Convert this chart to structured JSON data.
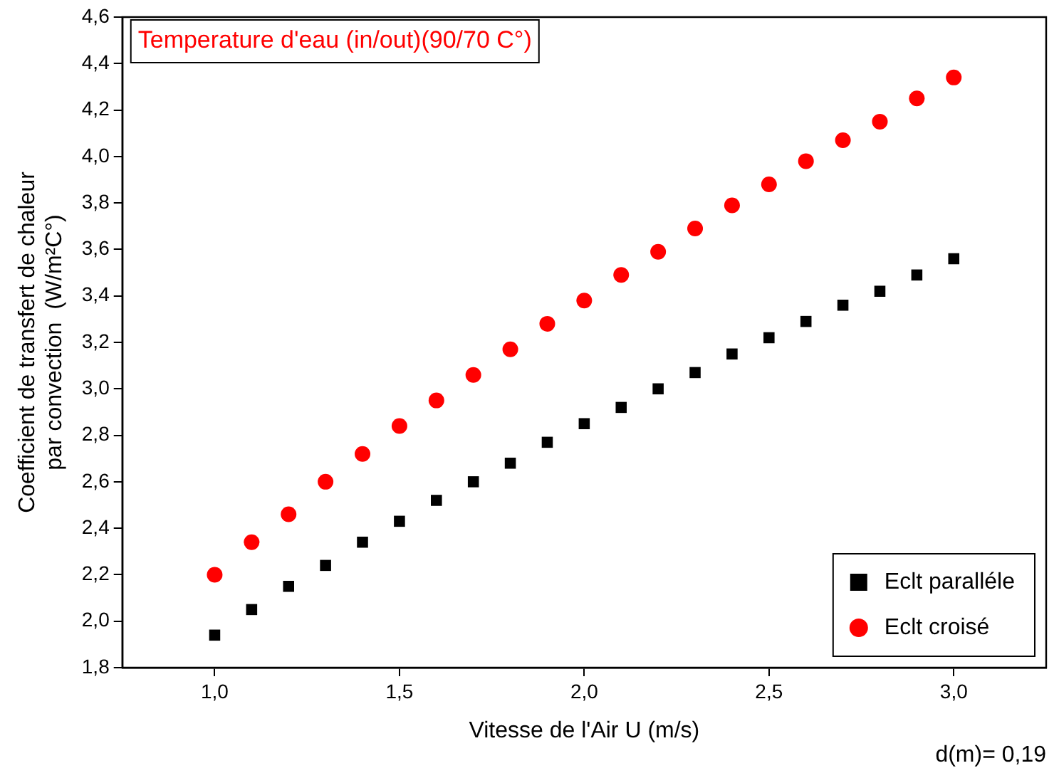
{
  "chart_data": {
    "type": "scatter",
    "title": "Temperature d'eau (in/out)(90/70 C°)",
    "xlabel": "Vitesse de l'Air U (m/s)",
    "ylabel": "Coefficient de transfert de chaleur\npar convection  (W/m²C°)",
    "annotations": [
      "d(m)= 0,19"
    ],
    "x": [
      1.0,
      1.1,
      1.2,
      1.3,
      1.4,
      1.5,
      1.6,
      1.7,
      1.8,
      1.9,
      2.0,
      2.1,
      2.2,
      2.3,
      2.4,
      2.5,
      2.6,
      2.7,
      2.8,
      2.9,
      3.0
    ],
    "series": [
      {
        "name": "Eclt paralléle",
        "color": "#000000",
        "marker": "square",
        "values": [
          1.94,
          2.05,
          2.15,
          2.24,
          2.34,
          2.43,
          2.52,
          2.6,
          2.68,
          2.77,
          2.85,
          2.92,
          3.0,
          3.07,
          3.15,
          3.22,
          3.29,
          3.36,
          3.42,
          3.49,
          3.56
        ]
      },
      {
        "name": "Eclt croisé",
        "color": "#ff0000",
        "marker": "circle",
        "values": [
          2.2,
          2.34,
          2.46,
          2.6,
          2.72,
          2.84,
          2.95,
          3.06,
          3.17,
          3.28,
          3.38,
          3.49,
          3.59,
          3.69,
          3.79,
          3.88,
          3.98,
          4.07,
          4.15,
          4.25,
          4.34
        ]
      }
    ],
    "xlim": [
      0.75,
      3.25
    ],
    "xticks": [
      {
        "value": 1.0,
        "label": "1,0"
      },
      {
        "value": 1.5,
        "label": "1,5"
      },
      {
        "value": 2.0,
        "label": "2,0"
      },
      {
        "value": 2.5,
        "label": "2,5"
      },
      {
        "value": 3.0,
        "label": "3,0"
      }
    ],
    "ylim": [
      1.8,
      4.6
    ],
    "yticks": [
      {
        "value": 1.8,
        "label": "1,8"
      },
      {
        "value": 2.0,
        "label": "2,0"
      },
      {
        "value": 2.2,
        "label": "2,2"
      },
      {
        "value": 2.4,
        "label": "2,4"
      },
      {
        "value": 2.6,
        "label": "2,6"
      },
      {
        "value": 2.8,
        "label": "2,8"
      },
      {
        "value": 3.0,
        "label": "3,0"
      },
      {
        "value": 3.2,
        "label": "3,2"
      },
      {
        "value": 3.4,
        "label": "3,4"
      },
      {
        "value": 3.6,
        "label": "3,6"
      },
      {
        "value": 3.8,
        "label": "3,8"
      },
      {
        "value": 4.0,
        "label": "4,0"
      },
      {
        "value": 4.2,
        "label": "4,2"
      },
      {
        "value": 4.4,
        "label": "4,4"
      },
      {
        "value": 4.6,
        "label": "4,6"
      }
    ],
    "grid": false,
    "legend": "bottom right"
  }
}
